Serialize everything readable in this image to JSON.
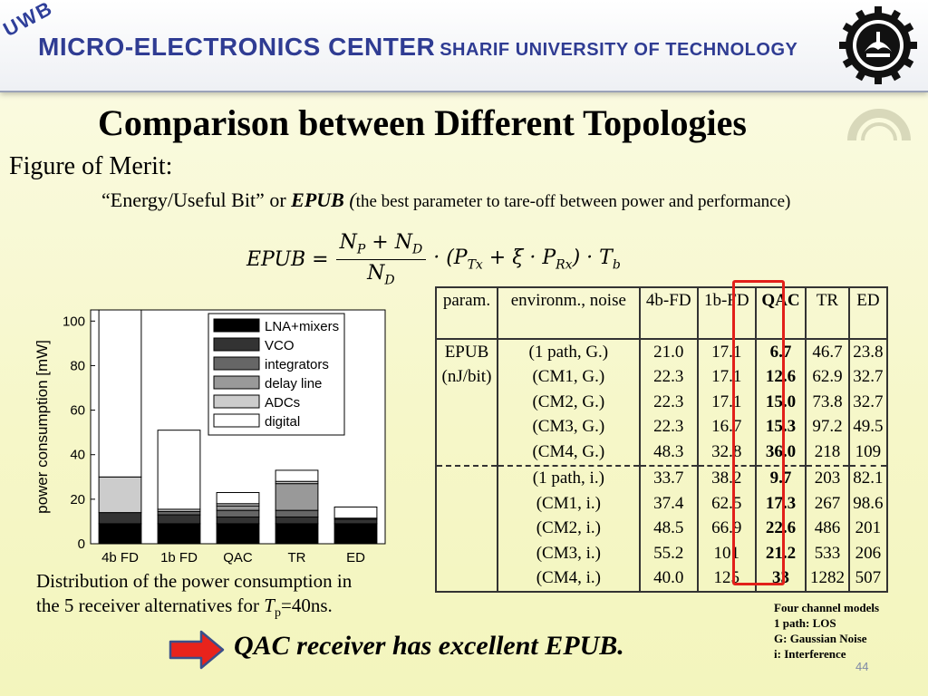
{
  "header": {
    "badge": "UWB",
    "title_main": "MICRO-ELECTRONICS CENTER",
    "title_sub": "SHARIF UNIVERSITY OF TECHNOLOGY"
  },
  "slide": {
    "title": "Comparison between Different Topologies",
    "figure_of_merit": "Figure of Merit:",
    "epub_quote": "“Energy/Useful Bit” or ",
    "epub_abbr": "EPUB",
    "epub_paren": " (",
    "epub_desc": "the best parameter to tare-off between power and performance)",
    "equation": {
      "lhs": "EPUB =",
      "num_a": "N",
      "num_a_sub": "P",
      "num_plus": " + N",
      "num_b_sub": "D",
      "den": "N",
      "den_sub": "D",
      "rhs_1": "· (P",
      "rhs_1_sub": "Tx",
      "rhs_2": " + ξ · P",
      "rhs_2_sub": "Rx",
      "rhs_3": ") · T",
      "rhs_3_sub": "b"
    },
    "chart_caption_1": "Distribution of the power consumption in",
    "chart_caption_2": "the 5 receiver alternatives for ",
    "chart_caption_tp": "T",
    "chart_caption_tp_sub": "p",
    "chart_caption_3": "=40ns.",
    "conclusion": "QAC receiver has excellent EPUB.",
    "notes": [
      "Four channel models",
      "1 path: LOS",
      "G: Gaussian Noise",
      "i: Interference"
    ],
    "page_number": "44"
  },
  "table": {
    "headers": [
      "param.",
      "environm., noise",
      "4b-FD",
      "1b-FD",
      "QAC",
      "TR",
      "ED"
    ],
    "param_label": "EPUB",
    "param_unit": "(nJ/bit)",
    "rows": [
      {
        "env": "(1 path, G.)",
        "v": [
          "21.0",
          "17.1",
          "6.7",
          "46.7",
          "23.8"
        ]
      },
      {
        "env": "(CM1, G.)",
        "v": [
          "22.3",
          "17.1",
          "12.6",
          "62.9",
          "32.7"
        ]
      },
      {
        "env": "(CM2, G.)",
        "v": [
          "22.3",
          "17.1",
          "15.0",
          "73.8",
          "32.7"
        ]
      },
      {
        "env": "(CM3, G.)",
        "v": [
          "22.3",
          "16.7",
          "15.3",
          "97.2",
          "49.5"
        ]
      },
      {
        "env": "(CM4, G.)",
        "v": [
          "48.3",
          "32.8",
          "36.0",
          "218",
          "109"
        ]
      },
      {
        "env": "(1 path, i.)",
        "v": [
          "33.7",
          "38.2",
          "9.7",
          "203",
          "82.1"
        ]
      },
      {
        "env": "(CM1, i.)",
        "v": [
          "37.4",
          "62.5",
          "17.3",
          "267",
          "98.6"
        ]
      },
      {
        "env": "(CM2, i.)",
        "v": [
          "48.5",
          "66.9",
          "22.6",
          "486",
          "201"
        ]
      },
      {
        "env": "(CM3, i.)",
        "v": [
          "55.2",
          "101",
          "21.2",
          "533",
          "206"
        ]
      },
      {
        "env": "(CM4, i.)",
        "v": [
          "40.0",
          "125",
          "33",
          "1282",
          "507"
        ]
      }
    ]
  },
  "colors": {
    "header_text": "#2f3c93",
    "highlight": "#e2201a",
    "arrow": "#e8231c"
  },
  "chart_data": {
    "type": "bar",
    "stacked": true,
    "categories": [
      "4b FD",
      "1b FD",
      "QAC",
      "TR",
      "ED"
    ],
    "ylabel": "power consumption [mW]",
    "ylim": [
      0,
      105
    ],
    "yticks": [
      0,
      20,
      40,
      60,
      80,
      100
    ],
    "legend_position": "top-right",
    "series": [
      {
        "name": "LNA+mixers",
        "color": "#000000",
        "values": [
          9,
          9,
          9,
          9,
          9
        ]
      },
      {
        "name": "VCO",
        "color": "#333333",
        "values": [
          5,
          4,
          3,
          3,
          2
        ]
      },
      {
        "name": "integrators",
        "color": "#666666",
        "values": [
          0,
          1.5,
          3,
          3,
          0.5
        ]
      },
      {
        "name": "delay line",
        "color": "#999999",
        "values": [
          0,
          0,
          2,
          12,
          0
        ]
      },
      {
        "name": "ADCs",
        "color": "#cccccc",
        "values": [
          16,
          1,
          1,
          1,
          0
        ]
      },
      {
        "name": "digital",
        "color": "#ffffff",
        "values": [
          75,
          35.5,
          5,
          5,
          5
        ]
      }
    ]
  }
}
